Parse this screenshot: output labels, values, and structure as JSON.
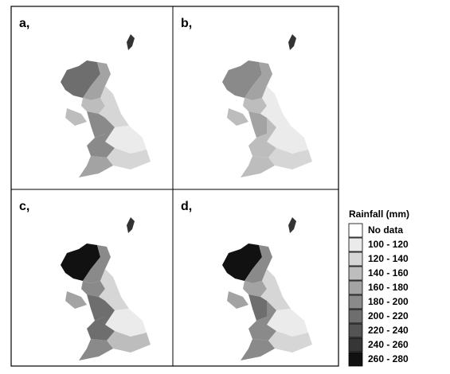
{
  "panels": [
    {
      "label": "a,"
    },
    {
      "label": "b,"
    },
    {
      "label": "c,"
    },
    {
      "label": "d,"
    }
  ],
  "legend": {
    "title": "Rainfall (mm)",
    "items": [
      {
        "label": "No data",
        "color": "#ffffff"
      },
      {
        "label": "100 - 120",
        "color": "#ebebeb"
      },
      {
        "label": "120 - 140",
        "color": "#d6d6d6"
      },
      {
        "label": "140 - 160",
        "color": "#bdbdbd"
      },
      {
        "label": "160 - 180",
        "color": "#a3a3a3"
      },
      {
        "label": "180 - 200",
        "color": "#8a8a8a"
      },
      {
        "label": "200 - 220",
        "color": "#6e6e6e"
      },
      {
        "label": "220 - 240",
        "color": "#545454"
      },
      {
        "label": "240 - 260",
        "color": "#363636"
      },
      {
        "label": "260 - 280",
        "color": "#111111"
      }
    ]
  }
}
